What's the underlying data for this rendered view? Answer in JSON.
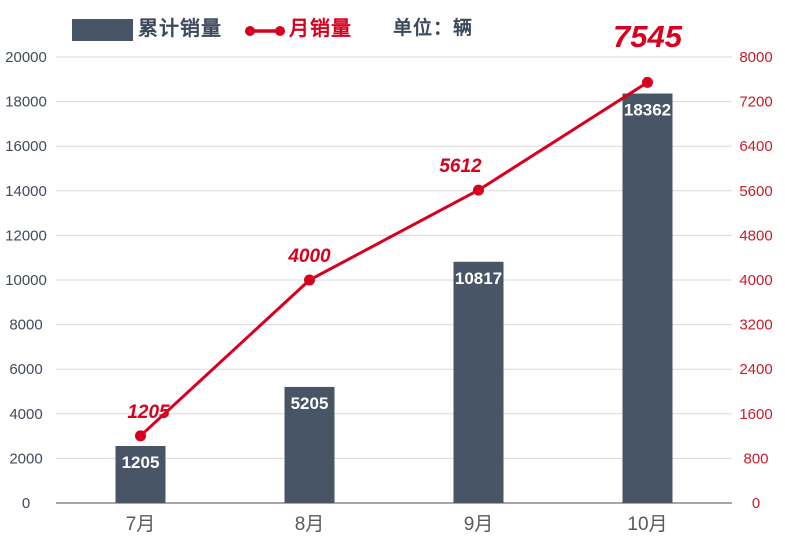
{
  "page": {
    "background": "#ffffff"
  },
  "legend": {
    "bar_label": "累计销量",
    "line_label": "月销量",
    "unit_label": "单位：辆"
  },
  "chart_data": {
    "type": "combo",
    "categories": [
      "7月",
      "8月",
      "9月",
      "10月"
    ],
    "series": [
      {
        "name": "累计销量",
        "type": "bar",
        "axis": "left",
        "values": [
          1205,
          5205,
          10817,
          18362
        ],
        "color": "#485566",
        "label_color": "#ffffff"
      },
      {
        "name": "月销量",
        "type": "line",
        "axis": "right",
        "values": [
          1205,
          4000,
          5612,
          7545
        ],
        "color": "#d7001f",
        "highlight_last": true,
        "highlighted_value": "7545"
      }
    ],
    "left_axis": {
      "min": 0,
      "max": 20000,
      "step": 2000,
      "ticks": [
        "0",
        "2000",
        "4000",
        "6000",
        "8000",
        "10000",
        "12000",
        "14000",
        "16000",
        "18000",
        "20000"
      ],
      "color": "#414b5a"
    },
    "right_axis": {
      "min": 0,
      "max": 8000,
      "step": 800,
      "ticks": [
        "0",
        "800",
        "1600",
        "2400",
        "3200",
        "4000",
        "4800",
        "5600",
        "6400",
        "7200",
        "8000"
      ],
      "color": "#cb1b2a"
    },
    "category_color": "#595959",
    "grid": true,
    "gridline_color": "#d9d9d9",
    "baseline_color": "#a6a6a6",
    "legend_position": "top",
    "unit": "辆"
  }
}
